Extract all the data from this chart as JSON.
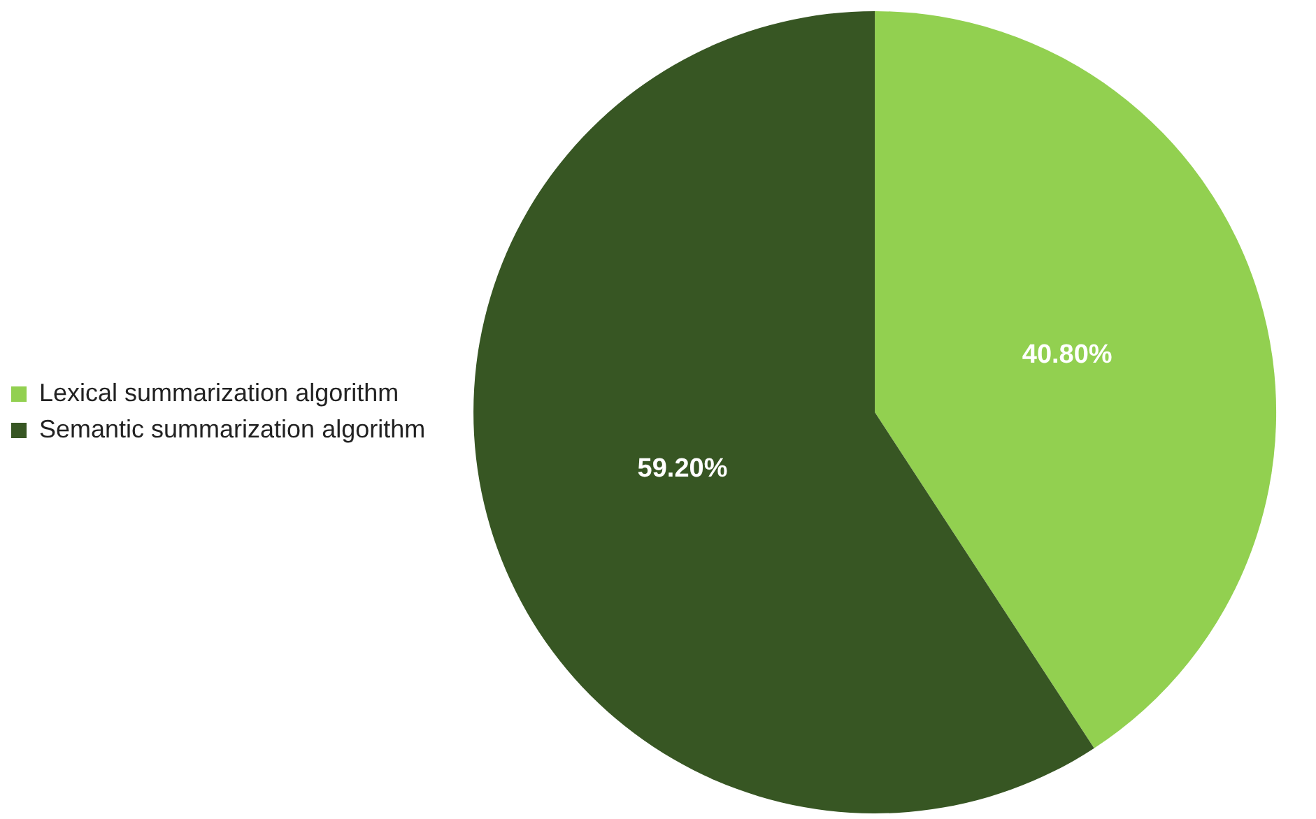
{
  "chart_data": {
    "type": "pie",
    "categories": [
      "Lexical summarization algorithm",
      "Semantic summarization algorithm"
    ],
    "values": [
      40.8,
      59.2
    ],
    "colors": [
      "#92d050",
      "#375623"
    ],
    "value_labels": [
      "40.80%",
      "59.20%"
    ],
    "legend": "left"
  }
}
